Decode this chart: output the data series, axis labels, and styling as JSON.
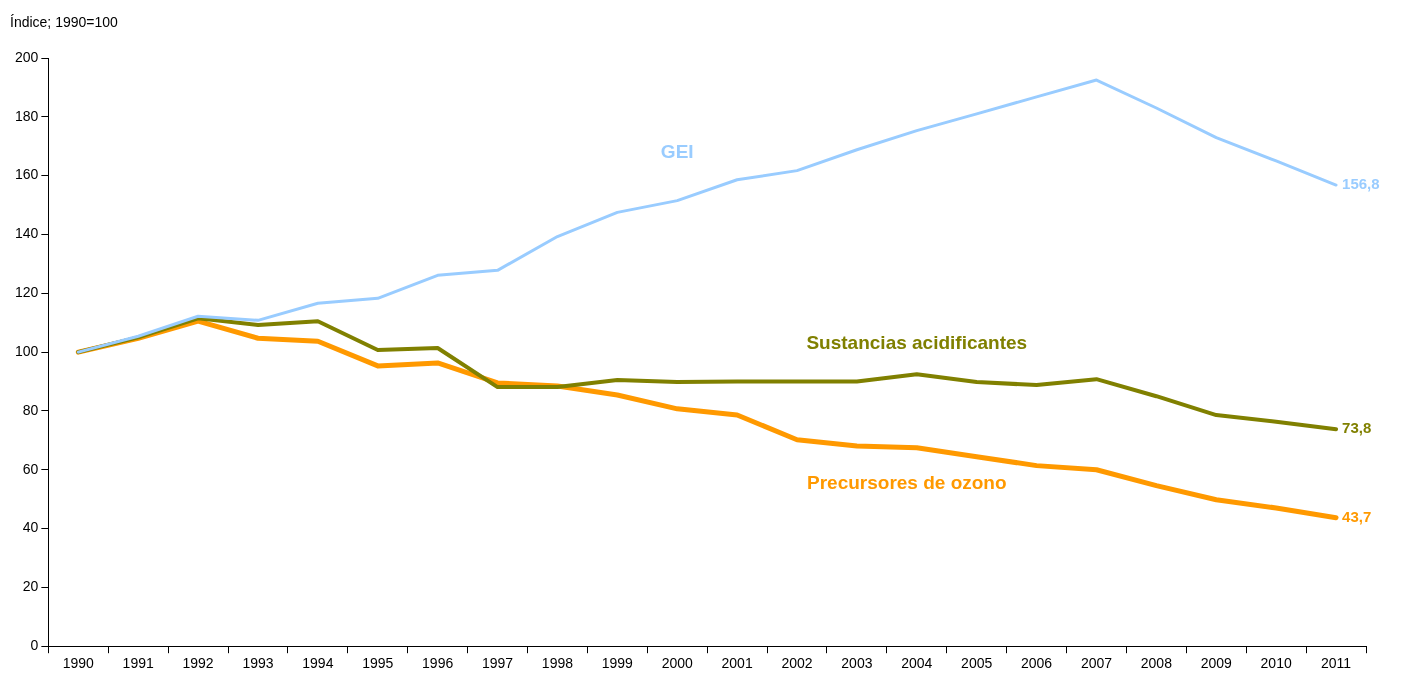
{
  "chart_data": {
    "type": "line",
    "ylabel": "Índice; 1990=100",
    "categories": [
      "1990",
      "1991",
      "1992",
      "1993",
      "1994",
      "1995",
      "1996",
      "1997",
      "1998",
      "1999",
      "2000",
      "2001",
      "2002",
      "2003",
      "2004",
      "2005",
      "2006",
      "2007",
      "2008",
      "2009",
      "2010",
      "2011"
    ],
    "series": [
      {
        "name": "GEI",
        "color": "#99ccff",
        "values": [
          100,
          105.4,
          112.2,
          110.8,
          116.6,
          118.3,
          126.1,
          127.8,
          139.3,
          147.5,
          151.5,
          158.6,
          161.7,
          168.8,
          175.3,
          181,
          186.8,
          192.5,
          183,
          172.9,
          165,
          156.8
        ],
        "value_labels": [
          null,
          null,
          null,
          null,
          null,
          null,
          null,
          null,
          null,
          null,
          null,
          null,
          null,
          null,
          null,
          null,
          null,
          null,
          null,
          null,
          null,
          "156,8"
        ]
      },
      {
        "name": "Sustancias acidificantes",
        "color": "#808000",
        "values": [
          100,
          105,
          111.5,
          109.2,
          110.5,
          100.7,
          101.4,
          88.1,
          88.1,
          90.5,
          89.8,
          90,
          90,
          90,
          92.5,
          89.8,
          88.8,
          90.8,
          85,
          78.6,
          76.3,
          73.8
        ],
        "value_labels": [
          null,
          null,
          null,
          null,
          null,
          null,
          null,
          null,
          null,
          null,
          null,
          null,
          null,
          null,
          null,
          null,
          null,
          null,
          null,
          null,
          null,
          "73,8"
        ]
      },
      {
        "name": "Precursores de ozono",
        "color": "#ff9900",
        "values": [
          100,
          104.7,
          110.5,
          104.7,
          103.7,
          95.3,
          96.3,
          89.5,
          88.5,
          85.4,
          80.7,
          78.6,
          70.2,
          68.1,
          67.5,
          64.4,
          61.4,
          60,
          54.6,
          49.8,
          47,
          43.7
        ],
        "value_labels": [
          null,
          null,
          null,
          null,
          null,
          null,
          null,
          null,
          null,
          null,
          null,
          null,
          null,
          null,
          null,
          null,
          null,
          null,
          null,
          null,
          null,
          "43,7"
        ]
      }
    ],
    "ylim": [
      0,
      200
    ],
    "yticks": [
      0,
      20,
      40,
      60,
      80,
      100,
      120,
      140,
      160,
      180,
      200
    ],
    "grid": false,
    "legend": false,
    "marker": "none",
    "line_style": "solid"
  }
}
